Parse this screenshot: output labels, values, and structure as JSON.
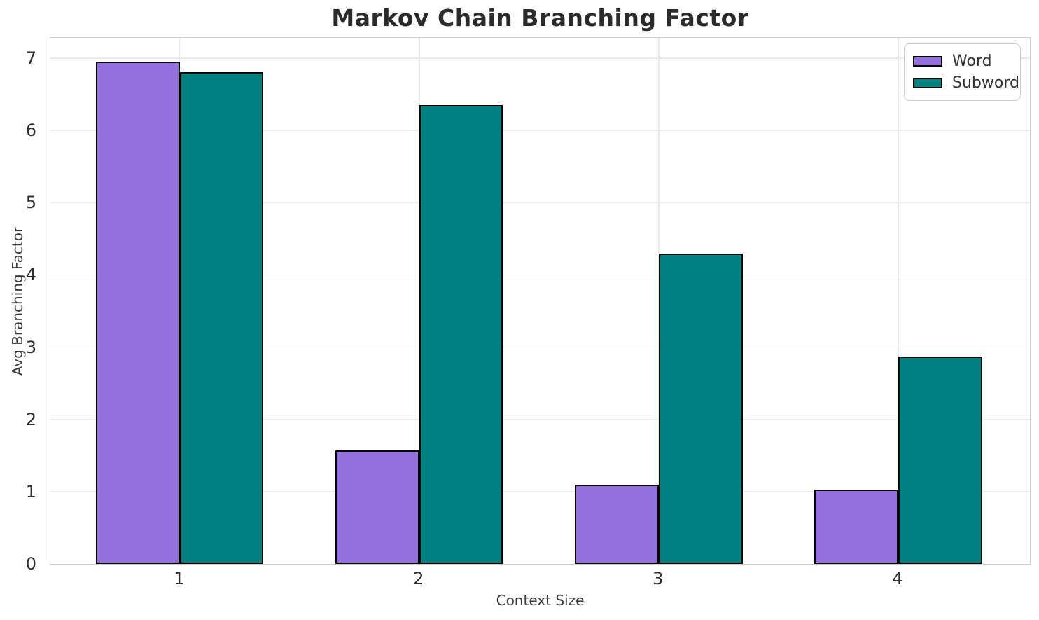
{
  "chart_data": {
    "type": "bar",
    "title": "Markov Chain Branching Factor",
    "xlabel": "Context Size",
    "ylabel": "Avg Branching Factor",
    "categories": [
      "1",
      "2",
      "3",
      "4"
    ],
    "series": [
      {
        "name": "Word",
        "color": "#9370DB",
        "values": [
          6.95,
          1.57,
          1.1,
          1.03
        ]
      },
      {
        "name": "Subword",
        "color": "#008080",
        "values": [
          6.81,
          6.35,
          4.29,
          2.87
        ]
      }
    ],
    "bar_width": 0.35,
    "xlim": [
      0.46,
      4.55
    ],
    "ylim": [
      0,
      7.28
    ],
    "yticks": [
      0,
      1,
      2,
      3,
      4,
      5,
      6,
      7
    ],
    "grid": true,
    "legend_position": "upper right",
    "edge_color": "#000000",
    "grid_color": "#e9e9e9",
    "spine_color": "#cfcfcf",
    "text_color": "#2e2e2e"
  }
}
